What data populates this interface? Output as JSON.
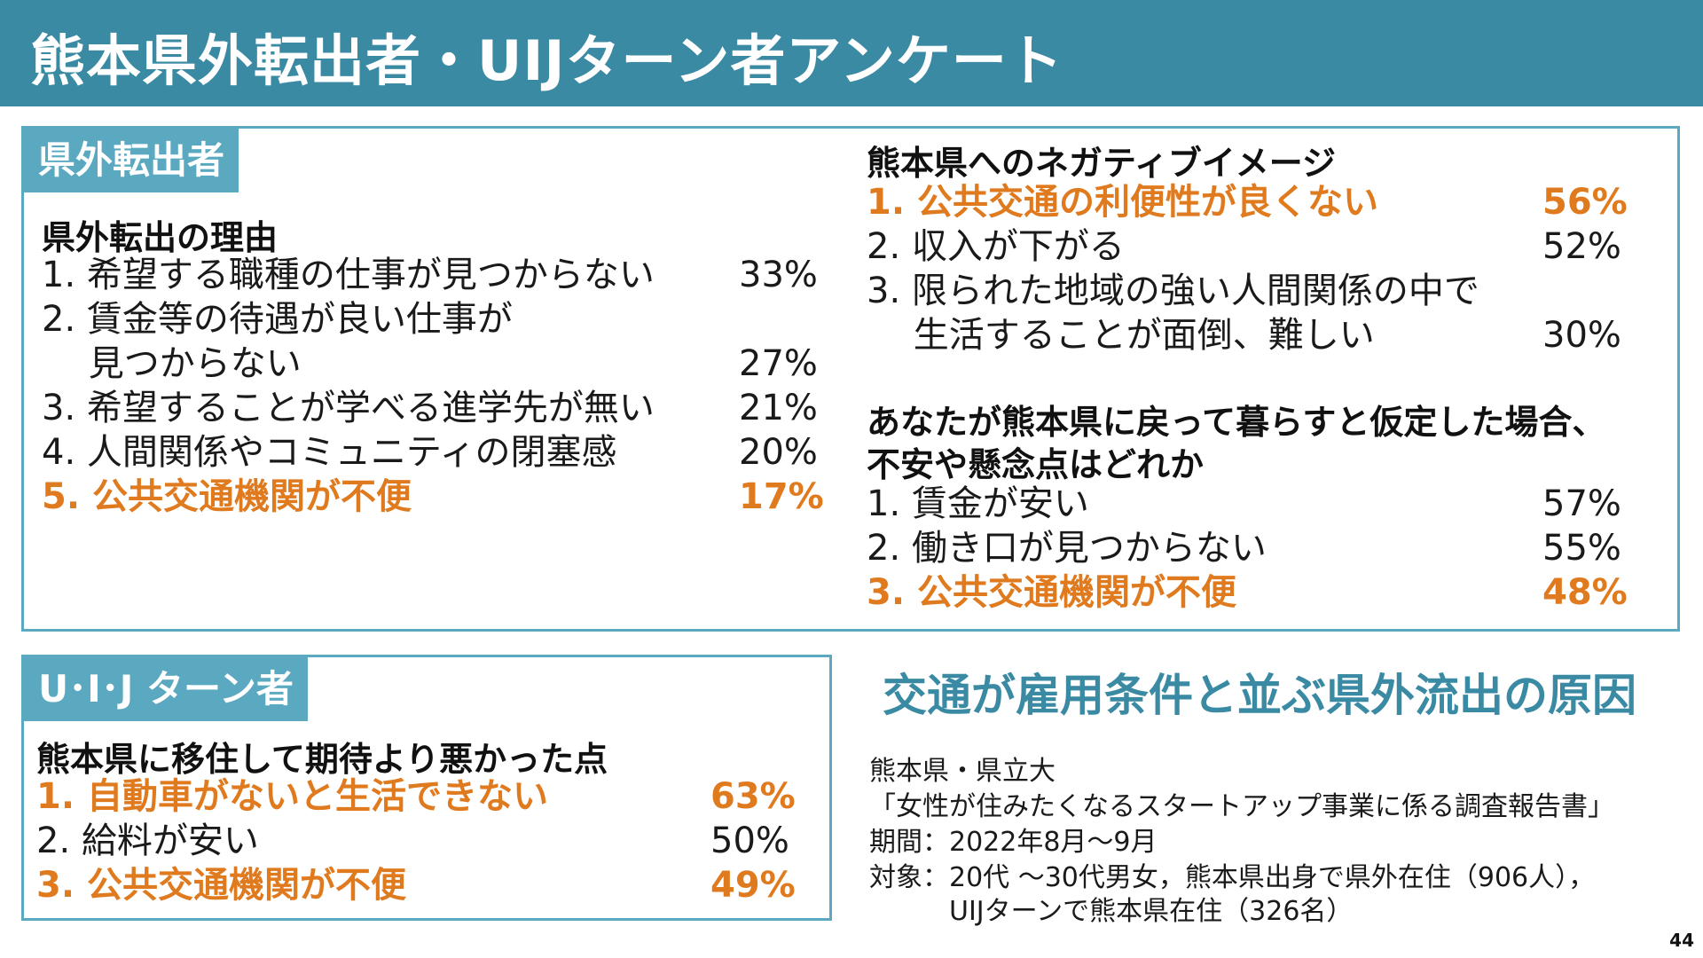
{
  "title": "熊本県外転出者・UIJターン者アンケート",
  "panel_out": {
    "tag": "県外転出者",
    "reasons_title": "県外転出の理由",
    "reasons": [
      {
        "label": "1. 希望する職種の仕事が見つからない",
        "pct": "33%"
      },
      {
        "label": "2. 賃金等の待遇が良い仕事が",
        "pct": ""
      },
      {
        "label": "　 見つからない",
        "pct": "27%"
      },
      {
        "label": "3. 希望することが学べる進学先が無い",
        "pct": "21%"
      },
      {
        "label": "4. 人間関係やコミュニティの閉塞感",
        "pct": "20%"
      },
      {
        "label": "5. 公共交通機関が不便",
        "pct": "17%"
      }
    ],
    "negative_title": "熊本県へのネガティブイメージ",
    "negative": [
      {
        "label": "1. 公共交通の利便性が良くない",
        "pct": "56%"
      },
      {
        "label": "2. 収入が下がる",
        "pct": "52%"
      },
      {
        "label": "3. 限られた地域の強い人間関係の中で",
        "pct": ""
      },
      {
        "label": "　 生活することが面倒、難しい",
        "pct": "30%"
      }
    ],
    "concern_title_1": "あなたが熊本県に戻って暮らすと仮定した場合、",
    "concern_title_2": "不安や懸念点はどれか",
    "concerns": [
      {
        "label": "1. 賃金が安い",
        "pct": "57%"
      },
      {
        "label": "2. 働き口が見つからない",
        "pct": "55%"
      },
      {
        "label": "3. 公共交通機関が不便",
        "pct": "48%"
      }
    ]
  },
  "panel_uij": {
    "tag": "U･I･J ターン者",
    "title": "熊本県に移住して期待より悪かった点",
    "items": [
      {
        "label": "1. 自動車がないと生活できない",
        "pct": "63%"
      },
      {
        "label": "2. 給料が安い",
        "pct": "50%"
      },
      {
        "label": "3. 公共交通機関が不便",
        "pct": "49%"
      }
    ]
  },
  "conclusion": "交通が雇用条件と並ぶ県外流出の原因",
  "source": {
    "line1": "熊本県・県立大",
    "line2": "「女性が住みたくなるスタートアップ事業に係る調査報告書」",
    "line3": "期間：2022年8月～9月",
    "line4": "対象：20代 ～30代男女，熊本県出身で県外在住（906人），",
    "line5": "　　　UIJターンで熊本県在住（326名）"
  },
  "page_number": "44",
  "colors": {
    "header_bg": "#3a8aa3",
    "tag_bg": "#5aa9c0",
    "highlight": "#e07a1f"
  }
}
